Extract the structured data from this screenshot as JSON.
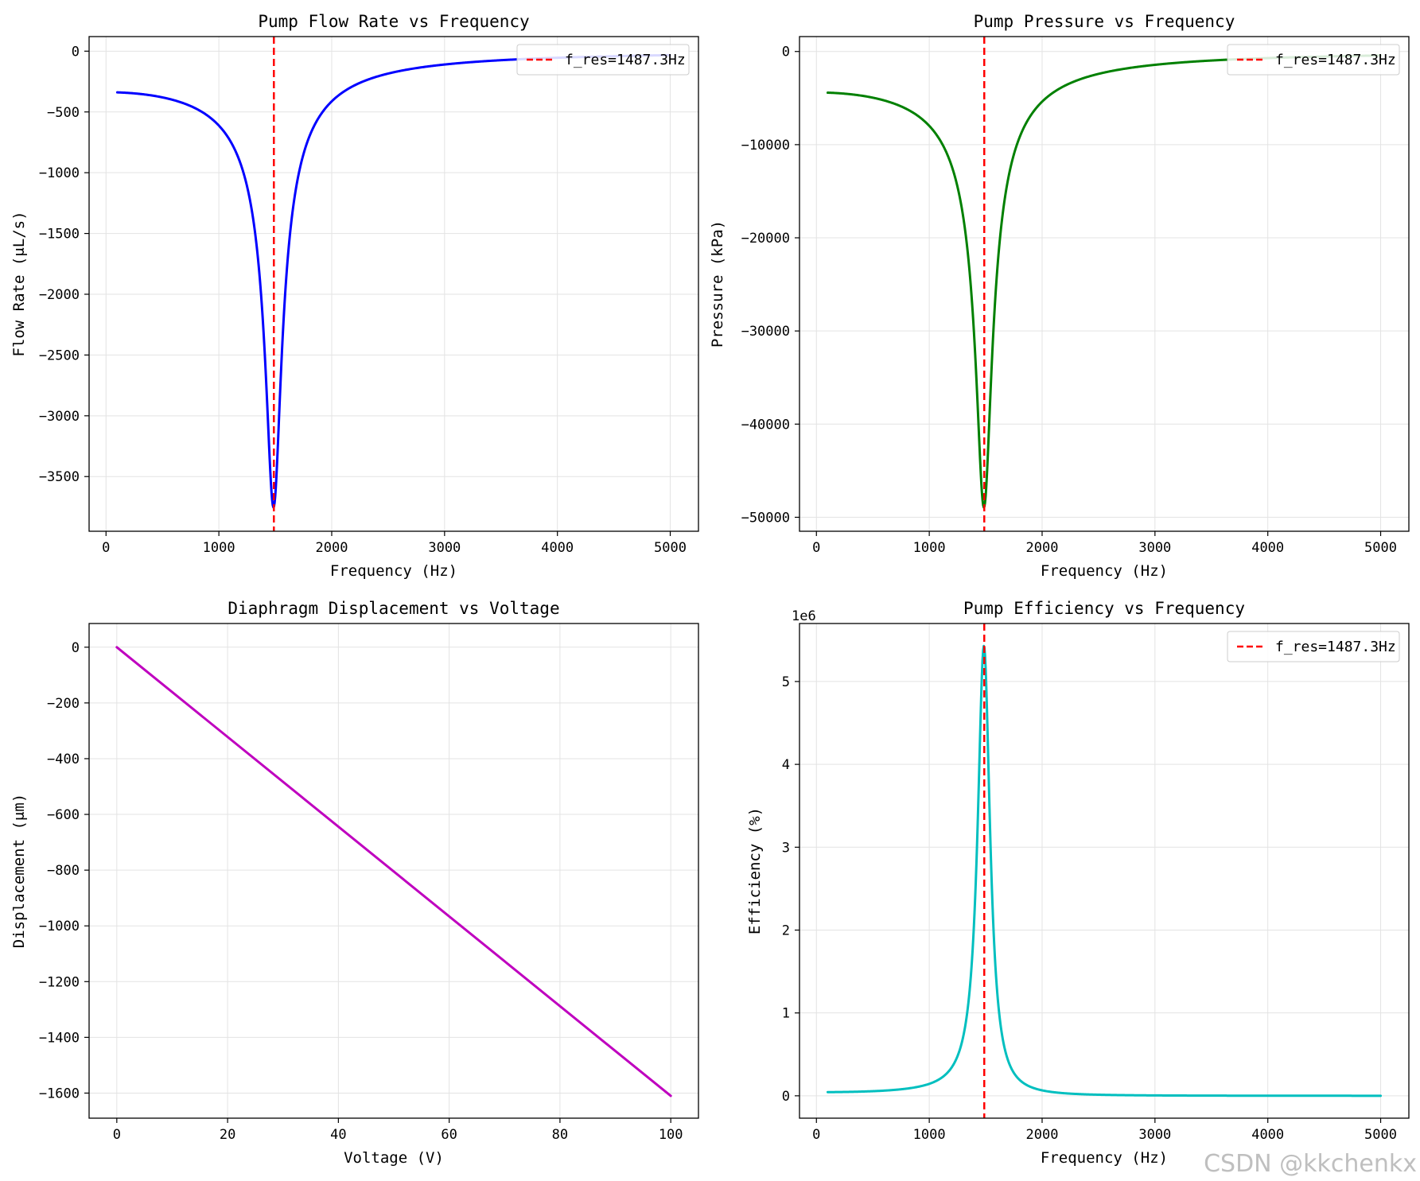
{
  "chart_data": [
    {
      "type": "line",
      "title": "Pump Flow Rate vs Frequency",
      "xlabel": "Frequency (Hz)",
      "ylabel": "Flow Rate (μL/s)",
      "xlim": [
        -150,
        5250
      ],
      "ylim": [
        -3950,
        120
      ],
      "xticks": [
        0,
        1000,
        2000,
        3000,
        4000,
        5000
      ],
      "yticks": [
        0,
        -500,
        -1000,
        -1500,
        -2000,
        -2500,
        -3000,
        -3500
      ],
      "grid": true,
      "legend": {
        "position": "top-right",
        "entries": [
          "f_res=1487.3Hz"
        ]
      },
      "vline": {
        "x": 1487.3,
        "label": "f_res=1487.3Hz",
        "color": "#ff0000"
      },
      "series": [
        {
          "name": "flow",
          "color": "#0000ff",
          "kind": "resonance",
          "f_min": 100,
          "f_max": 5000,
          "peak": -3750,
          "zeta": 0.045
        }
      ]
    },
    {
      "type": "line",
      "title": "Pump Pressure vs Frequency",
      "xlabel": "Frequency (Hz)",
      "ylabel": "Pressure (kPa)",
      "xlim": [
        -150,
        5250
      ],
      "ylim": [
        -51500,
        1600
      ],
      "xticks": [
        0,
        1000,
        2000,
        3000,
        4000,
        5000
      ],
      "yticks": [
        0,
        -10000,
        -20000,
        -30000,
        -40000,
        -50000
      ],
      "grid": true,
      "legend": {
        "position": "top-right",
        "entries": [
          "f_res=1487.3Hz"
        ]
      },
      "vline": {
        "x": 1487.3,
        "label": "f_res=1487.3Hz",
        "color": "#ff0000"
      },
      "series": [
        {
          "name": "pressure",
          "color": "#008000",
          "kind": "resonance",
          "f_min": 100,
          "f_max": 5000,
          "peak": -48900,
          "zeta": 0.045
        }
      ]
    },
    {
      "type": "line",
      "title": "Diaphragm Displacement vs Voltage",
      "xlabel": "Voltage (V)",
      "ylabel": "Displacement (μm)",
      "xlim": [
        -5,
        105
      ],
      "ylim": [
        -1690,
        85
      ],
      "xticks": [
        0,
        20,
        40,
        60,
        80,
        100
      ],
      "yticks": [
        0,
        -200,
        -400,
        -600,
        -800,
        -1000,
        -1200,
        -1400,
        -1600
      ],
      "grid": true,
      "series": [
        {
          "name": "displacement",
          "color": "#bf00bf",
          "kind": "linear",
          "x": [
            0,
            100
          ],
          "y": [
            0,
            -1610
          ]
        }
      ]
    },
    {
      "type": "line",
      "title": "Pump Efficiency vs Frequency",
      "xlabel": "Frequency (Hz)",
      "ylabel": "Efficiency (%)",
      "offset_text": "1e6",
      "xlim": [
        -150,
        5250
      ],
      "ylim": [
        -0.27,
        5.7
      ],
      "xticks": [
        0,
        1000,
        2000,
        3000,
        4000,
        5000
      ],
      "yticks": [
        0,
        1,
        2,
        3,
        4,
        5
      ],
      "grid": true,
      "legend": {
        "position": "top-right",
        "entries": [
          "f_res=1487.3Hz"
        ]
      },
      "vline": {
        "x": 1487.3,
        "label": "f_res=1487.3Hz",
        "color": "#ff0000"
      },
      "series": [
        {
          "name": "efficiency",
          "color": "#00bfbf",
          "kind": "resonance_sq",
          "f_min": 100,
          "f_max": 5000,
          "peak": 5.42,
          "zeta": 0.045
        }
      ]
    }
  ],
  "watermark": "CSDN @kkchenkx"
}
